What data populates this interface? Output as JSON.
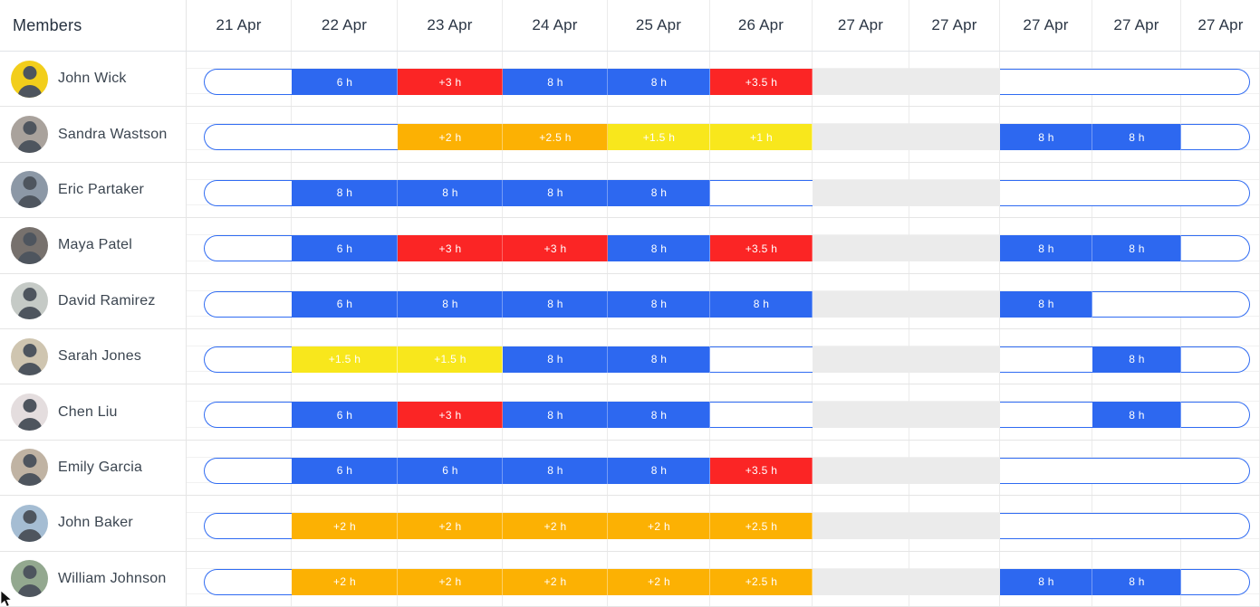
{
  "header": {
    "members_label": "Members",
    "dates": [
      "21 Apr",
      "22 Apr",
      "23 Apr",
      "24 Apr",
      "25 Apr",
      "26 Apr",
      "27 Apr",
      "27 Apr",
      "27 Apr",
      "27 Apr",
      "27 Apr"
    ]
  },
  "colors": {
    "hours_blue": "#2D68F0",
    "overtime_red": "#FB2525",
    "overtime_orange": "#FCB103",
    "overtime_yellow": "#F8E71C",
    "weekend_gray": "#EBEBEB",
    "capacity_outline_blue": "#2F6BF2"
  },
  "members": [
    {
      "name": "John Wick",
      "avatar_color": "#F2CE1B",
      "segments": [
        {
          "cols": [
            0,
            0
          ],
          "type": "empty",
          "label": ""
        },
        {
          "cols": [
            1,
            1
          ],
          "type": "blue",
          "label": "6 h"
        },
        {
          "cols": [
            2,
            2
          ],
          "type": "red",
          "label": "+3 h"
        },
        {
          "cols": [
            3,
            3
          ],
          "type": "blue",
          "label": "8 h"
        },
        {
          "cols": [
            4,
            4
          ],
          "type": "blue",
          "label": "8 h"
        },
        {
          "cols": [
            5,
            5
          ],
          "type": "red",
          "label": "+3.5 h"
        },
        {
          "cols": [
            6,
            7
          ],
          "type": "gray",
          "label": ""
        },
        {
          "cols": [
            8,
            10
          ],
          "type": "empty",
          "label": ""
        }
      ]
    },
    {
      "name": "Sandra Wastson",
      "avatar_color": "#A9A29C",
      "segments": [
        {
          "cols": [
            0,
            1
          ],
          "type": "empty",
          "label": ""
        },
        {
          "cols": [
            2,
            2
          ],
          "type": "orange",
          "label": "+2 h"
        },
        {
          "cols": [
            3,
            3
          ],
          "type": "orange",
          "label": "+2.5 h"
        },
        {
          "cols": [
            4,
            4
          ],
          "type": "yellow",
          "label": "+1.5 h"
        },
        {
          "cols": [
            5,
            5
          ],
          "type": "yellow",
          "label": "+1 h"
        },
        {
          "cols": [
            6,
            7
          ],
          "type": "gray",
          "label": ""
        },
        {
          "cols": [
            8,
            8
          ],
          "type": "blue",
          "label": "8 h"
        },
        {
          "cols": [
            9,
            9
          ],
          "type": "blue",
          "label": "8 h"
        },
        {
          "cols": [
            10,
            10
          ],
          "type": "empty",
          "label": ""
        }
      ]
    },
    {
      "name": "Eric Partaker",
      "avatar_color": "#8C98A6",
      "segments": [
        {
          "cols": [
            0,
            0
          ],
          "type": "empty",
          "label": ""
        },
        {
          "cols": [
            1,
            1
          ],
          "type": "blue",
          "label": "8 h"
        },
        {
          "cols": [
            2,
            2
          ],
          "type": "blue",
          "label": "8 h"
        },
        {
          "cols": [
            3,
            3
          ],
          "type": "blue",
          "label": "8 h"
        },
        {
          "cols": [
            4,
            4
          ],
          "type": "blue",
          "label": "8 h"
        },
        {
          "cols": [
            5,
            5
          ],
          "type": "empty",
          "label": ""
        },
        {
          "cols": [
            6,
            7
          ],
          "type": "gray",
          "label": ""
        },
        {
          "cols": [
            8,
            10
          ],
          "type": "empty",
          "label": ""
        }
      ]
    },
    {
      "name": "Maya Patel",
      "avatar_color": "#77716D",
      "segments": [
        {
          "cols": [
            0,
            0
          ],
          "type": "empty",
          "label": ""
        },
        {
          "cols": [
            1,
            1
          ],
          "type": "blue",
          "label": "6 h"
        },
        {
          "cols": [
            2,
            2
          ],
          "type": "red",
          "label": "+3 h"
        },
        {
          "cols": [
            3,
            3
          ],
          "type": "red",
          "label": "+3 h"
        },
        {
          "cols": [
            4,
            4
          ],
          "type": "blue",
          "label": "8 h"
        },
        {
          "cols": [
            5,
            5
          ],
          "type": "red",
          "label": "+3.5 h"
        },
        {
          "cols": [
            6,
            7
          ],
          "type": "gray",
          "label": ""
        },
        {
          "cols": [
            8,
            8
          ],
          "type": "blue",
          "label": "8 h"
        },
        {
          "cols": [
            9,
            9
          ],
          "type": "blue",
          "label": "8 h"
        },
        {
          "cols": [
            10,
            10
          ],
          "type": "empty",
          "label": ""
        }
      ]
    },
    {
      "name": "David Ramirez",
      "avatar_color": "#C5CAC6",
      "segments": [
        {
          "cols": [
            0,
            0
          ],
          "type": "empty",
          "label": ""
        },
        {
          "cols": [
            1,
            1
          ],
          "type": "blue",
          "label": "6 h"
        },
        {
          "cols": [
            2,
            2
          ],
          "type": "blue",
          "label": "8 h"
        },
        {
          "cols": [
            3,
            3
          ],
          "type": "blue",
          "label": "8 h"
        },
        {
          "cols": [
            4,
            4
          ],
          "type": "blue",
          "label": "8 h"
        },
        {
          "cols": [
            5,
            5
          ],
          "type": "blue",
          "label": "8 h"
        },
        {
          "cols": [
            6,
            7
          ],
          "type": "gray",
          "label": ""
        },
        {
          "cols": [
            8,
            8
          ],
          "type": "blue",
          "label": "8 h"
        },
        {
          "cols": [
            9,
            10
          ],
          "type": "empty",
          "label": ""
        }
      ]
    },
    {
      "name": "Sarah Jones",
      "avatar_color": "#CFC5B0",
      "segments": [
        {
          "cols": [
            0,
            0
          ],
          "type": "empty",
          "label": ""
        },
        {
          "cols": [
            1,
            1
          ],
          "type": "yellow",
          "label": "+1.5 h"
        },
        {
          "cols": [
            2,
            2
          ],
          "type": "yellow",
          "label": "+1.5 h"
        },
        {
          "cols": [
            3,
            3
          ],
          "type": "blue",
          "label": "8 h"
        },
        {
          "cols": [
            4,
            4
          ],
          "type": "blue",
          "label": "8 h"
        },
        {
          "cols": [
            5,
            5
          ],
          "type": "empty",
          "label": ""
        },
        {
          "cols": [
            6,
            7
          ],
          "type": "gray",
          "label": ""
        },
        {
          "cols": [
            8,
            8
          ],
          "type": "empty",
          "label": ""
        },
        {
          "cols": [
            9,
            9
          ],
          "type": "blue",
          "label": "8 h"
        },
        {
          "cols": [
            10,
            10
          ],
          "type": "empty",
          "label": ""
        }
      ]
    },
    {
      "name": "Chen Liu",
      "avatar_color": "#E4DDDE",
      "segments": [
        {
          "cols": [
            0,
            0
          ],
          "type": "empty",
          "label": ""
        },
        {
          "cols": [
            1,
            1
          ],
          "type": "blue",
          "label": "6 h"
        },
        {
          "cols": [
            2,
            2
          ],
          "type": "red",
          "label": "+3 h"
        },
        {
          "cols": [
            3,
            3
          ],
          "type": "blue",
          "label": "8 h"
        },
        {
          "cols": [
            4,
            4
          ],
          "type": "blue",
          "label": "8 h"
        },
        {
          "cols": [
            5,
            5
          ],
          "type": "empty",
          "label": ""
        },
        {
          "cols": [
            6,
            7
          ],
          "type": "gray",
          "label": ""
        },
        {
          "cols": [
            8,
            8
          ],
          "type": "empty",
          "label": ""
        },
        {
          "cols": [
            9,
            9
          ],
          "type": "blue",
          "label": "8 h"
        },
        {
          "cols": [
            10,
            10
          ],
          "type": "empty",
          "label": ""
        }
      ]
    },
    {
      "name": "Emily Garcia",
      "avatar_color": "#C0B3A3",
      "segments": [
        {
          "cols": [
            0,
            0
          ],
          "type": "empty",
          "label": ""
        },
        {
          "cols": [
            1,
            1
          ],
          "type": "blue",
          "label": "6 h"
        },
        {
          "cols": [
            2,
            2
          ],
          "type": "blue",
          "label": "6 h"
        },
        {
          "cols": [
            3,
            3
          ],
          "type": "blue",
          "label": "8 h"
        },
        {
          "cols": [
            4,
            4
          ],
          "type": "blue",
          "label": "8 h"
        },
        {
          "cols": [
            5,
            5
          ],
          "type": "red",
          "label": "+3.5 h"
        },
        {
          "cols": [
            6,
            7
          ],
          "type": "gray",
          "label": ""
        },
        {
          "cols": [
            8,
            10
          ],
          "type": "empty",
          "label": ""
        }
      ]
    },
    {
      "name": "John Baker",
      "avatar_color": "#A5BDD3",
      "segments": [
        {
          "cols": [
            0,
            0
          ],
          "type": "empty",
          "label": ""
        },
        {
          "cols": [
            1,
            1
          ],
          "type": "orange",
          "label": "+2 h"
        },
        {
          "cols": [
            2,
            2
          ],
          "type": "orange",
          "label": "+2 h"
        },
        {
          "cols": [
            3,
            3
          ],
          "type": "orange",
          "label": "+2 h"
        },
        {
          "cols": [
            4,
            4
          ],
          "type": "orange",
          "label": "+2 h"
        },
        {
          "cols": [
            5,
            5
          ],
          "type": "orange",
          "label": "+2.5 h"
        },
        {
          "cols": [
            6,
            7
          ],
          "type": "gray",
          "label": ""
        },
        {
          "cols": [
            8,
            10
          ],
          "type": "empty",
          "label": ""
        }
      ]
    },
    {
      "name": "William Johnson",
      "avatar_color": "#93A88F",
      "segments": [
        {
          "cols": [
            0,
            0
          ],
          "type": "empty",
          "label": ""
        },
        {
          "cols": [
            1,
            1
          ],
          "type": "orange",
          "label": "+2 h"
        },
        {
          "cols": [
            2,
            2
          ],
          "type": "orange",
          "label": "+2 h"
        },
        {
          "cols": [
            3,
            3
          ],
          "type": "orange",
          "label": "+2 h"
        },
        {
          "cols": [
            4,
            4
          ],
          "type": "orange",
          "label": "+2 h"
        },
        {
          "cols": [
            5,
            5
          ],
          "type": "orange",
          "label": "+2.5 h"
        },
        {
          "cols": [
            6,
            7
          ],
          "type": "gray",
          "label": ""
        },
        {
          "cols": [
            8,
            8
          ],
          "type": "blue",
          "label": "8 h"
        },
        {
          "cols": [
            9,
            9
          ],
          "type": "blue",
          "label": "8 h"
        },
        {
          "cols": [
            10,
            10
          ],
          "type": "empty",
          "label": ""
        }
      ]
    }
  ]
}
